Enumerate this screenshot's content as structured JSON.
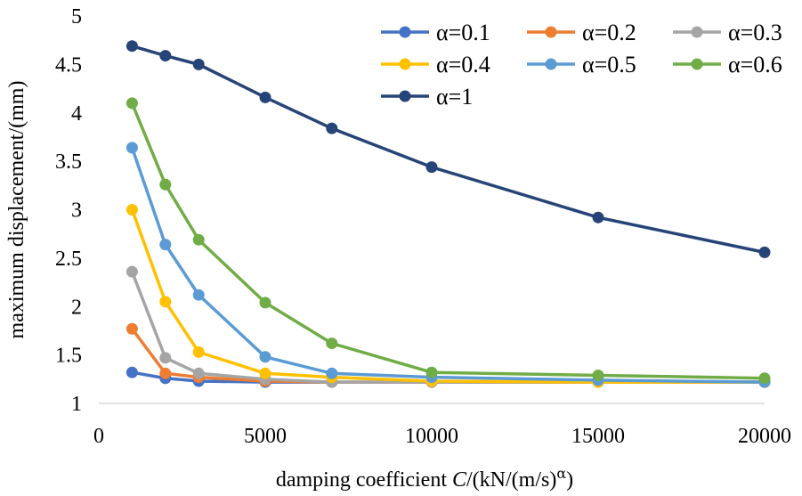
{
  "chart_data": {
    "type": "line",
    "title": "",
    "xlabel": {
      "prefix": "damping coefficient ",
      "italic": "C",
      "suffix": "/(kN/(m/s)",
      "superscript": "α",
      "closing": ")"
    },
    "ylabel": "maximum displacement/(mm)",
    "xlim": [
      0,
      20000
    ],
    "ylim": [
      1,
      5
    ],
    "xticks": [
      "0",
      "5000",
      "10000",
      "15000",
      "20000"
    ],
    "yticks": [
      "1",
      "1.5",
      "2",
      "2.5",
      "3",
      "3.5",
      "4",
      "4.5",
      "5"
    ],
    "grid": false,
    "legend_position": "top-right",
    "x": [
      1000,
      2000,
      3000,
      5000,
      7000,
      10000,
      15000,
      20000
    ],
    "series": [
      {
        "name": "α=0.1",
        "color": "#4472C4",
        "values": [
          1.32,
          1.26,
          1.23,
          1.22,
          1.22,
          1.22,
          1.22,
          1.22
        ]
      },
      {
        "name": "α=0.2",
        "color": "#ED7D31",
        "values": [
          1.77,
          1.31,
          1.27,
          1.23,
          1.22,
          1.22,
          1.22,
          1.22
        ]
      },
      {
        "name": "α=0.3",
        "color": "#A5A5A5",
        "values": [
          2.36,
          1.47,
          1.31,
          1.25,
          1.22,
          1.22,
          1.22,
          1.22
        ]
      },
      {
        "name": "α=0.4",
        "color": "#FFC000",
        "values": [
          3.0,
          2.05,
          1.53,
          1.31,
          1.27,
          1.23,
          1.22,
          1.22
        ]
      },
      {
        "name": "α=0.5",
        "color": "#5B9BD5",
        "values": [
          3.64,
          2.64,
          2.12,
          1.48,
          1.31,
          1.27,
          1.24,
          1.22
        ]
      },
      {
        "name": "α=0.6",
        "color": "#70AD47",
        "values": [
          4.1,
          3.26,
          2.69,
          2.04,
          1.62,
          1.32,
          1.29,
          1.26
        ]
      },
      {
        "name": "α=1",
        "color": "#264478",
        "values": [
          4.69,
          4.59,
          4.5,
          4.16,
          3.84,
          3.44,
          2.92,
          2.56
        ]
      }
    ]
  }
}
